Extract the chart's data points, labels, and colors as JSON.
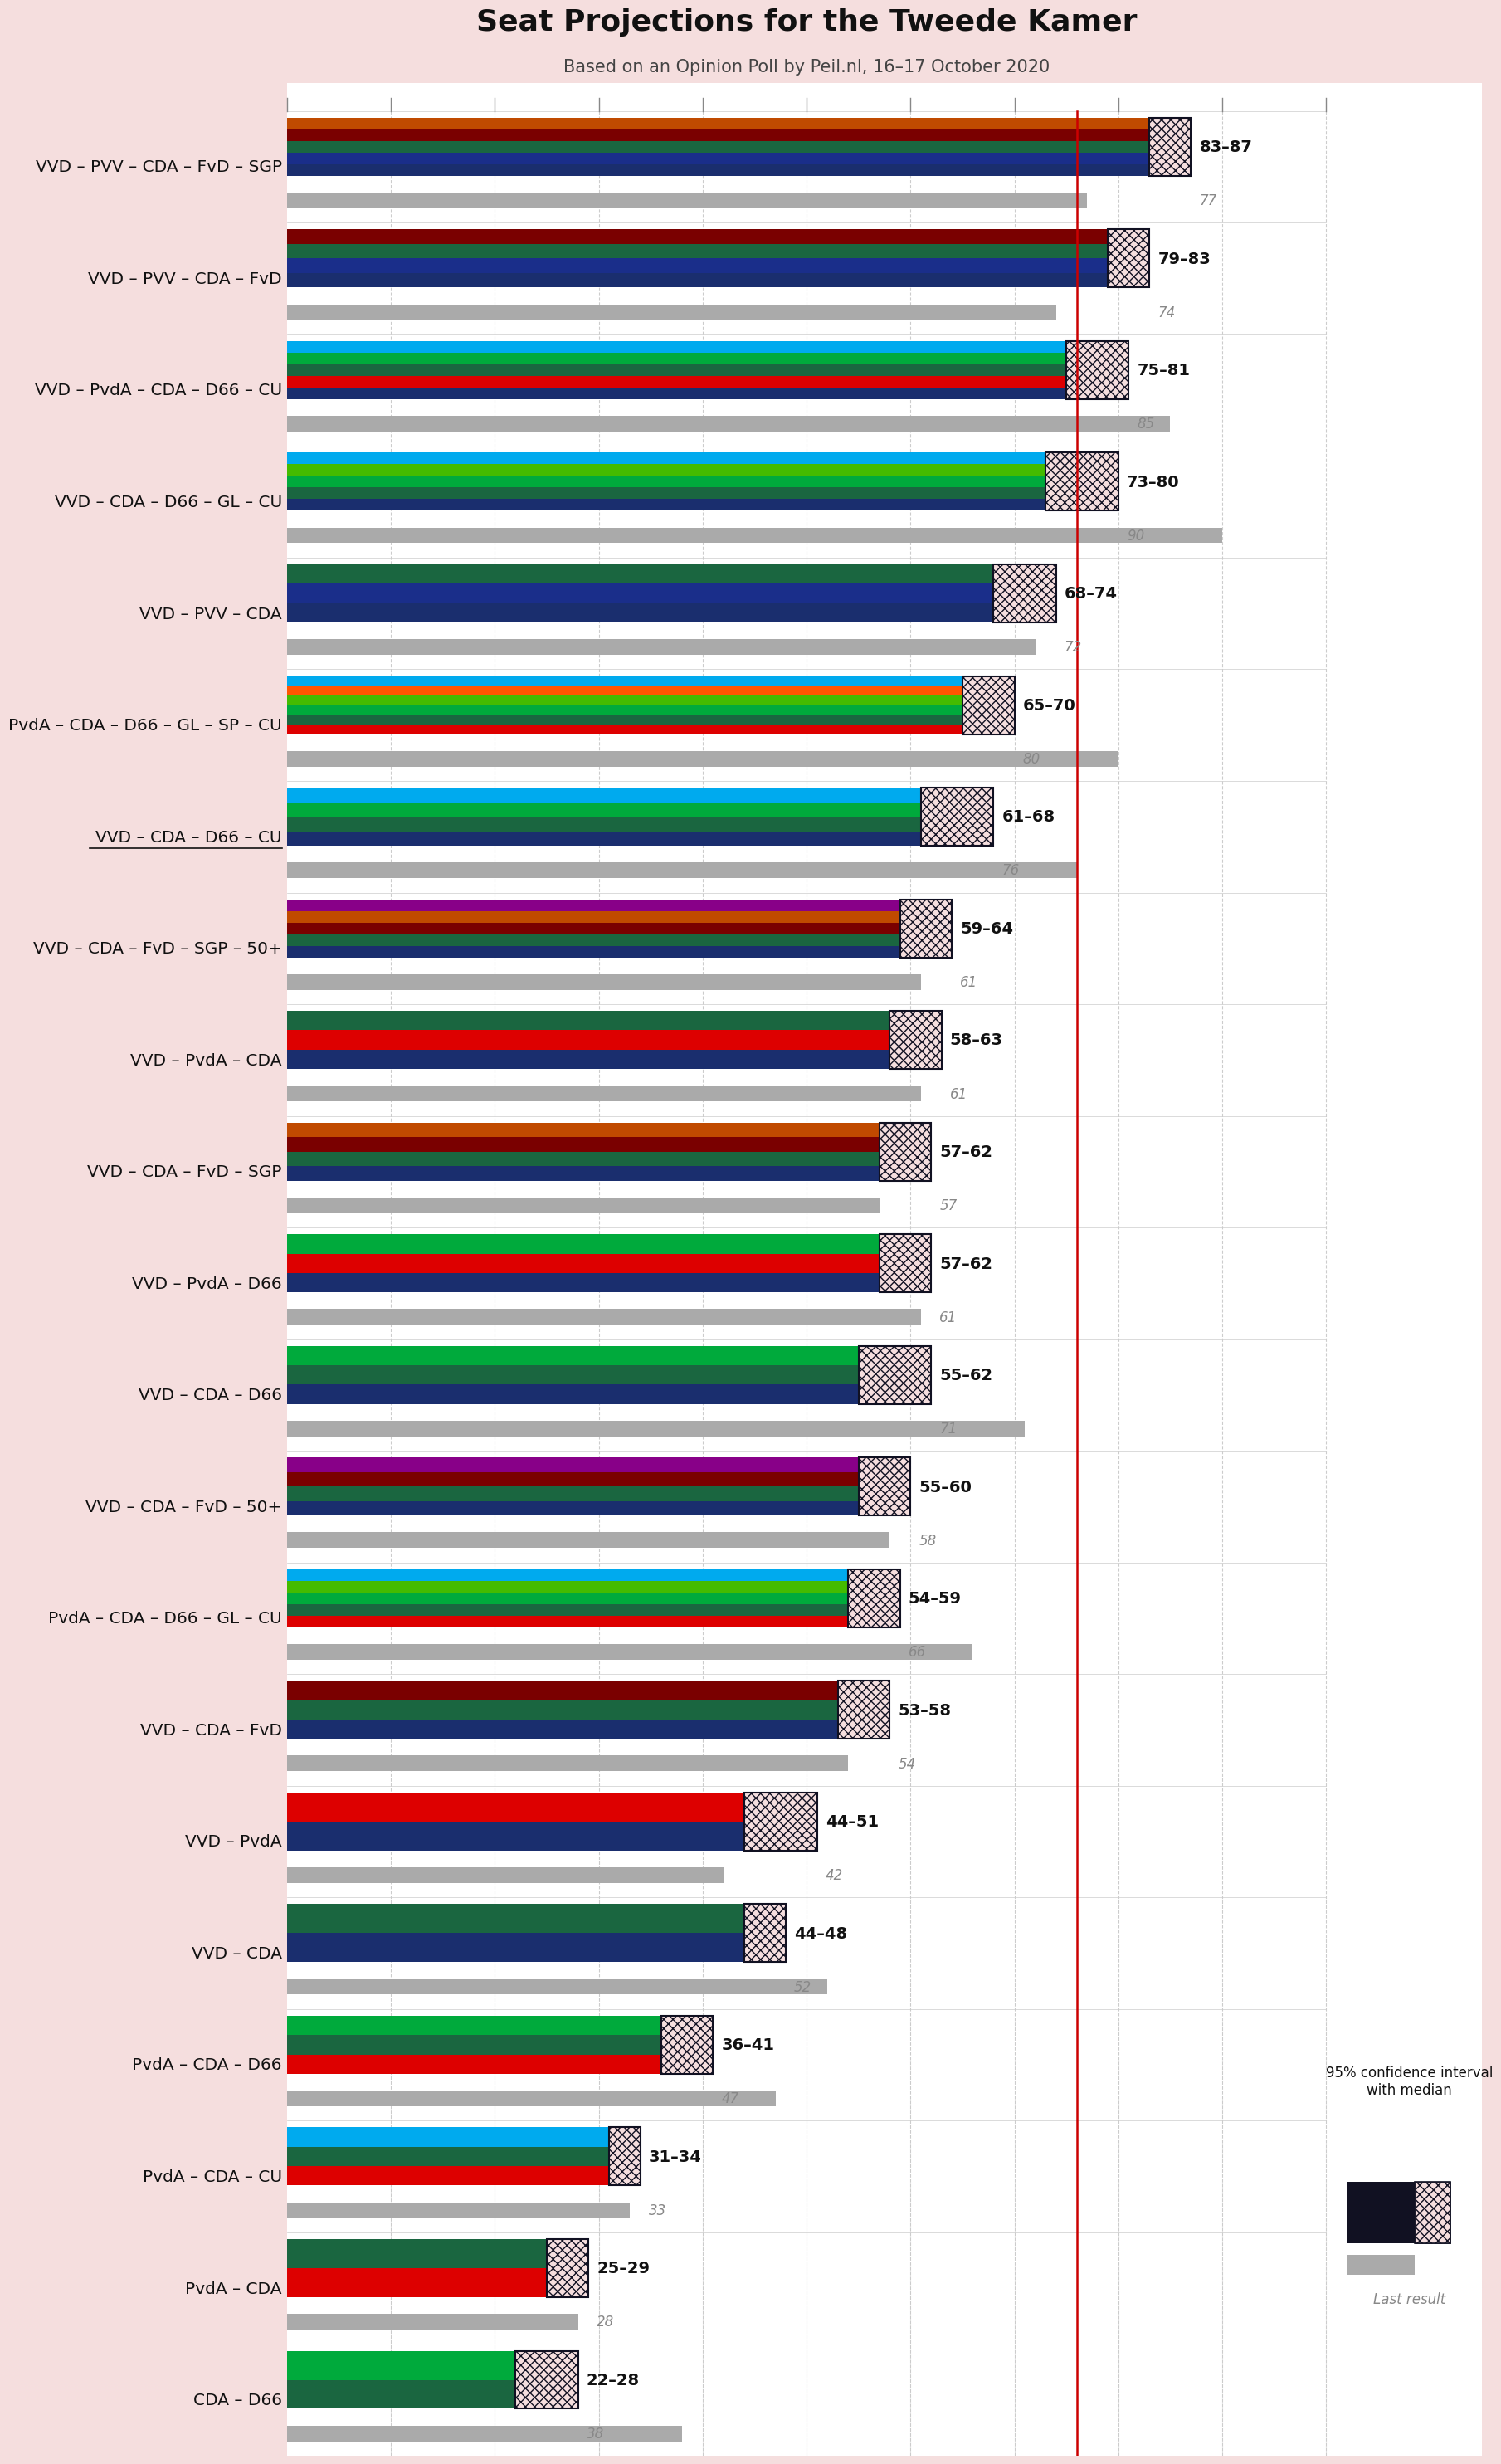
{
  "title": "Seat Projections for the Tweede Kamer",
  "subtitle": "Based on an Opinion Poll by Peil.nl, 16–17 October 2020",
  "background_color": "#f5dede",
  "majority_line": 76,
  "x_max": 100,
  "coalitions": [
    {
      "name": "VVD – PVV – CDA – FvD – SGP",
      "low": 83,
      "high": 87,
      "last": 77,
      "underline": false,
      "parties": [
        "VVD",
        "PVV",
        "CDA",
        "FvD",
        "SGP"
      ]
    },
    {
      "name": "VVD – PVV – CDA – FvD",
      "low": 79,
      "high": 83,
      "last": 74,
      "underline": false,
      "parties": [
        "VVD",
        "PVV",
        "CDA",
        "FvD"
      ]
    },
    {
      "name": "VVD – PvdA – CDA – D66 – CU",
      "low": 75,
      "high": 81,
      "last": 85,
      "underline": false,
      "parties": [
        "VVD",
        "PvdA",
        "CDA",
        "D66",
        "CU"
      ]
    },
    {
      "name": "VVD – CDA – D66 – GL – CU",
      "low": 73,
      "high": 80,
      "last": 90,
      "underline": false,
      "parties": [
        "VVD",
        "CDA",
        "D66",
        "GL",
        "CU"
      ]
    },
    {
      "name": "VVD – PVV – CDA",
      "low": 68,
      "high": 74,
      "last": 72,
      "underline": false,
      "parties": [
        "VVD",
        "PVV",
        "CDA"
      ]
    },
    {
      "name": "PvdA – CDA – D66 – GL – SP – CU",
      "low": 65,
      "high": 70,
      "last": 80,
      "underline": false,
      "parties": [
        "PvdA",
        "CDA",
        "D66",
        "GL",
        "SP",
        "CU"
      ]
    },
    {
      "name": "VVD – CDA – D66 – CU",
      "low": 61,
      "high": 68,
      "last": 76,
      "underline": true,
      "parties": [
        "VVD",
        "CDA",
        "D66",
        "CU"
      ]
    },
    {
      "name": "VVD – CDA – FvD – SGP – 50+",
      "low": 59,
      "high": 64,
      "last": 61,
      "underline": false,
      "parties": [
        "VVD",
        "CDA",
        "FvD",
        "SGP",
        "50+"
      ]
    },
    {
      "name": "VVD – PvdA – CDA",
      "low": 58,
      "high": 63,
      "last": 61,
      "underline": false,
      "parties": [
        "VVD",
        "PvdA",
        "CDA"
      ]
    },
    {
      "name": "VVD – CDA – FvD – SGP",
      "low": 57,
      "high": 62,
      "last": 57,
      "underline": false,
      "parties": [
        "VVD",
        "CDA",
        "FvD",
        "SGP"
      ]
    },
    {
      "name": "VVD – PvdA – D66",
      "low": 57,
      "high": 62,
      "last": 61,
      "underline": false,
      "parties": [
        "VVD",
        "PvdA",
        "D66"
      ]
    },
    {
      "name": "VVD – CDA – D66",
      "low": 55,
      "high": 62,
      "last": 71,
      "underline": false,
      "parties": [
        "VVD",
        "CDA",
        "D66"
      ]
    },
    {
      "name": "VVD – CDA – FvD – 50+",
      "low": 55,
      "high": 60,
      "last": 58,
      "underline": false,
      "parties": [
        "VVD",
        "CDA",
        "FvD",
        "50+"
      ]
    },
    {
      "name": "PvdA – CDA – D66 – GL – CU",
      "low": 54,
      "high": 59,
      "last": 66,
      "underline": false,
      "parties": [
        "PvdA",
        "CDA",
        "D66",
        "GL",
        "CU"
      ]
    },
    {
      "name": "VVD – CDA – FvD",
      "low": 53,
      "high": 58,
      "last": 54,
      "underline": false,
      "parties": [
        "VVD",
        "CDA",
        "FvD"
      ]
    },
    {
      "name": "VVD – PvdA",
      "low": 44,
      "high": 51,
      "last": 42,
      "underline": false,
      "parties": [
        "VVD",
        "PvdA"
      ]
    },
    {
      "name": "VVD – CDA",
      "low": 44,
      "high": 48,
      "last": 52,
      "underline": false,
      "parties": [
        "VVD",
        "CDA"
      ]
    },
    {
      "name": "PvdA – CDA – D66",
      "low": 36,
      "high": 41,
      "last": 47,
      "underline": false,
      "parties": [
        "PvdA",
        "CDA",
        "D66"
      ]
    },
    {
      "name": "PvdA – CDA – CU",
      "low": 31,
      "high": 34,
      "last": 33,
      "underline": false,
      "parties": [
        "PvdA",
        "CDA",
        "CU"
      ]
    },
    {
      "name": "PvdA – CDA",
      "low": 25,
      "high": 29,
      "last": 28,
      "underline": false,
      "parties": [
        "PvdA",
        "CDA"
      ]
    },
    {
      "name": "CDA – D66",
      "low": 22,
      "high": 28,
      "last": 38,
      "underline": false,
      "parties": [
        "CDA",
        "D66"
      ]
    }
  ],
  "party_colors": {
    "VVD": "#1a2e6e",
    "PVV": "#1a2e8a",
    "CDA": "#1a6640",
    "FvD": "#7a0000",
    "SGP": "#c04a00",
    "PvdA": "#dd0000",
    "D66": "#00aa3c",
    "GL": "#44bb00",
    "CU": "#00aaee",
    "SP": "#ff5500",
    "50+": "#880088"
  },
  "ci_hatch_color": "#111122",
  "last_bar_color": "#aaaaaa",
  "majority_color": "#cc0000",
  "label_color": "#111111",
  "last_label_color": "#888888",
  "title_fontsize": 26,
  "subtitle_fontsize": 15,
  "label_fontsize": 14.5,
  "range_fontsize": 14,
  "last_fontsize": 12
}
